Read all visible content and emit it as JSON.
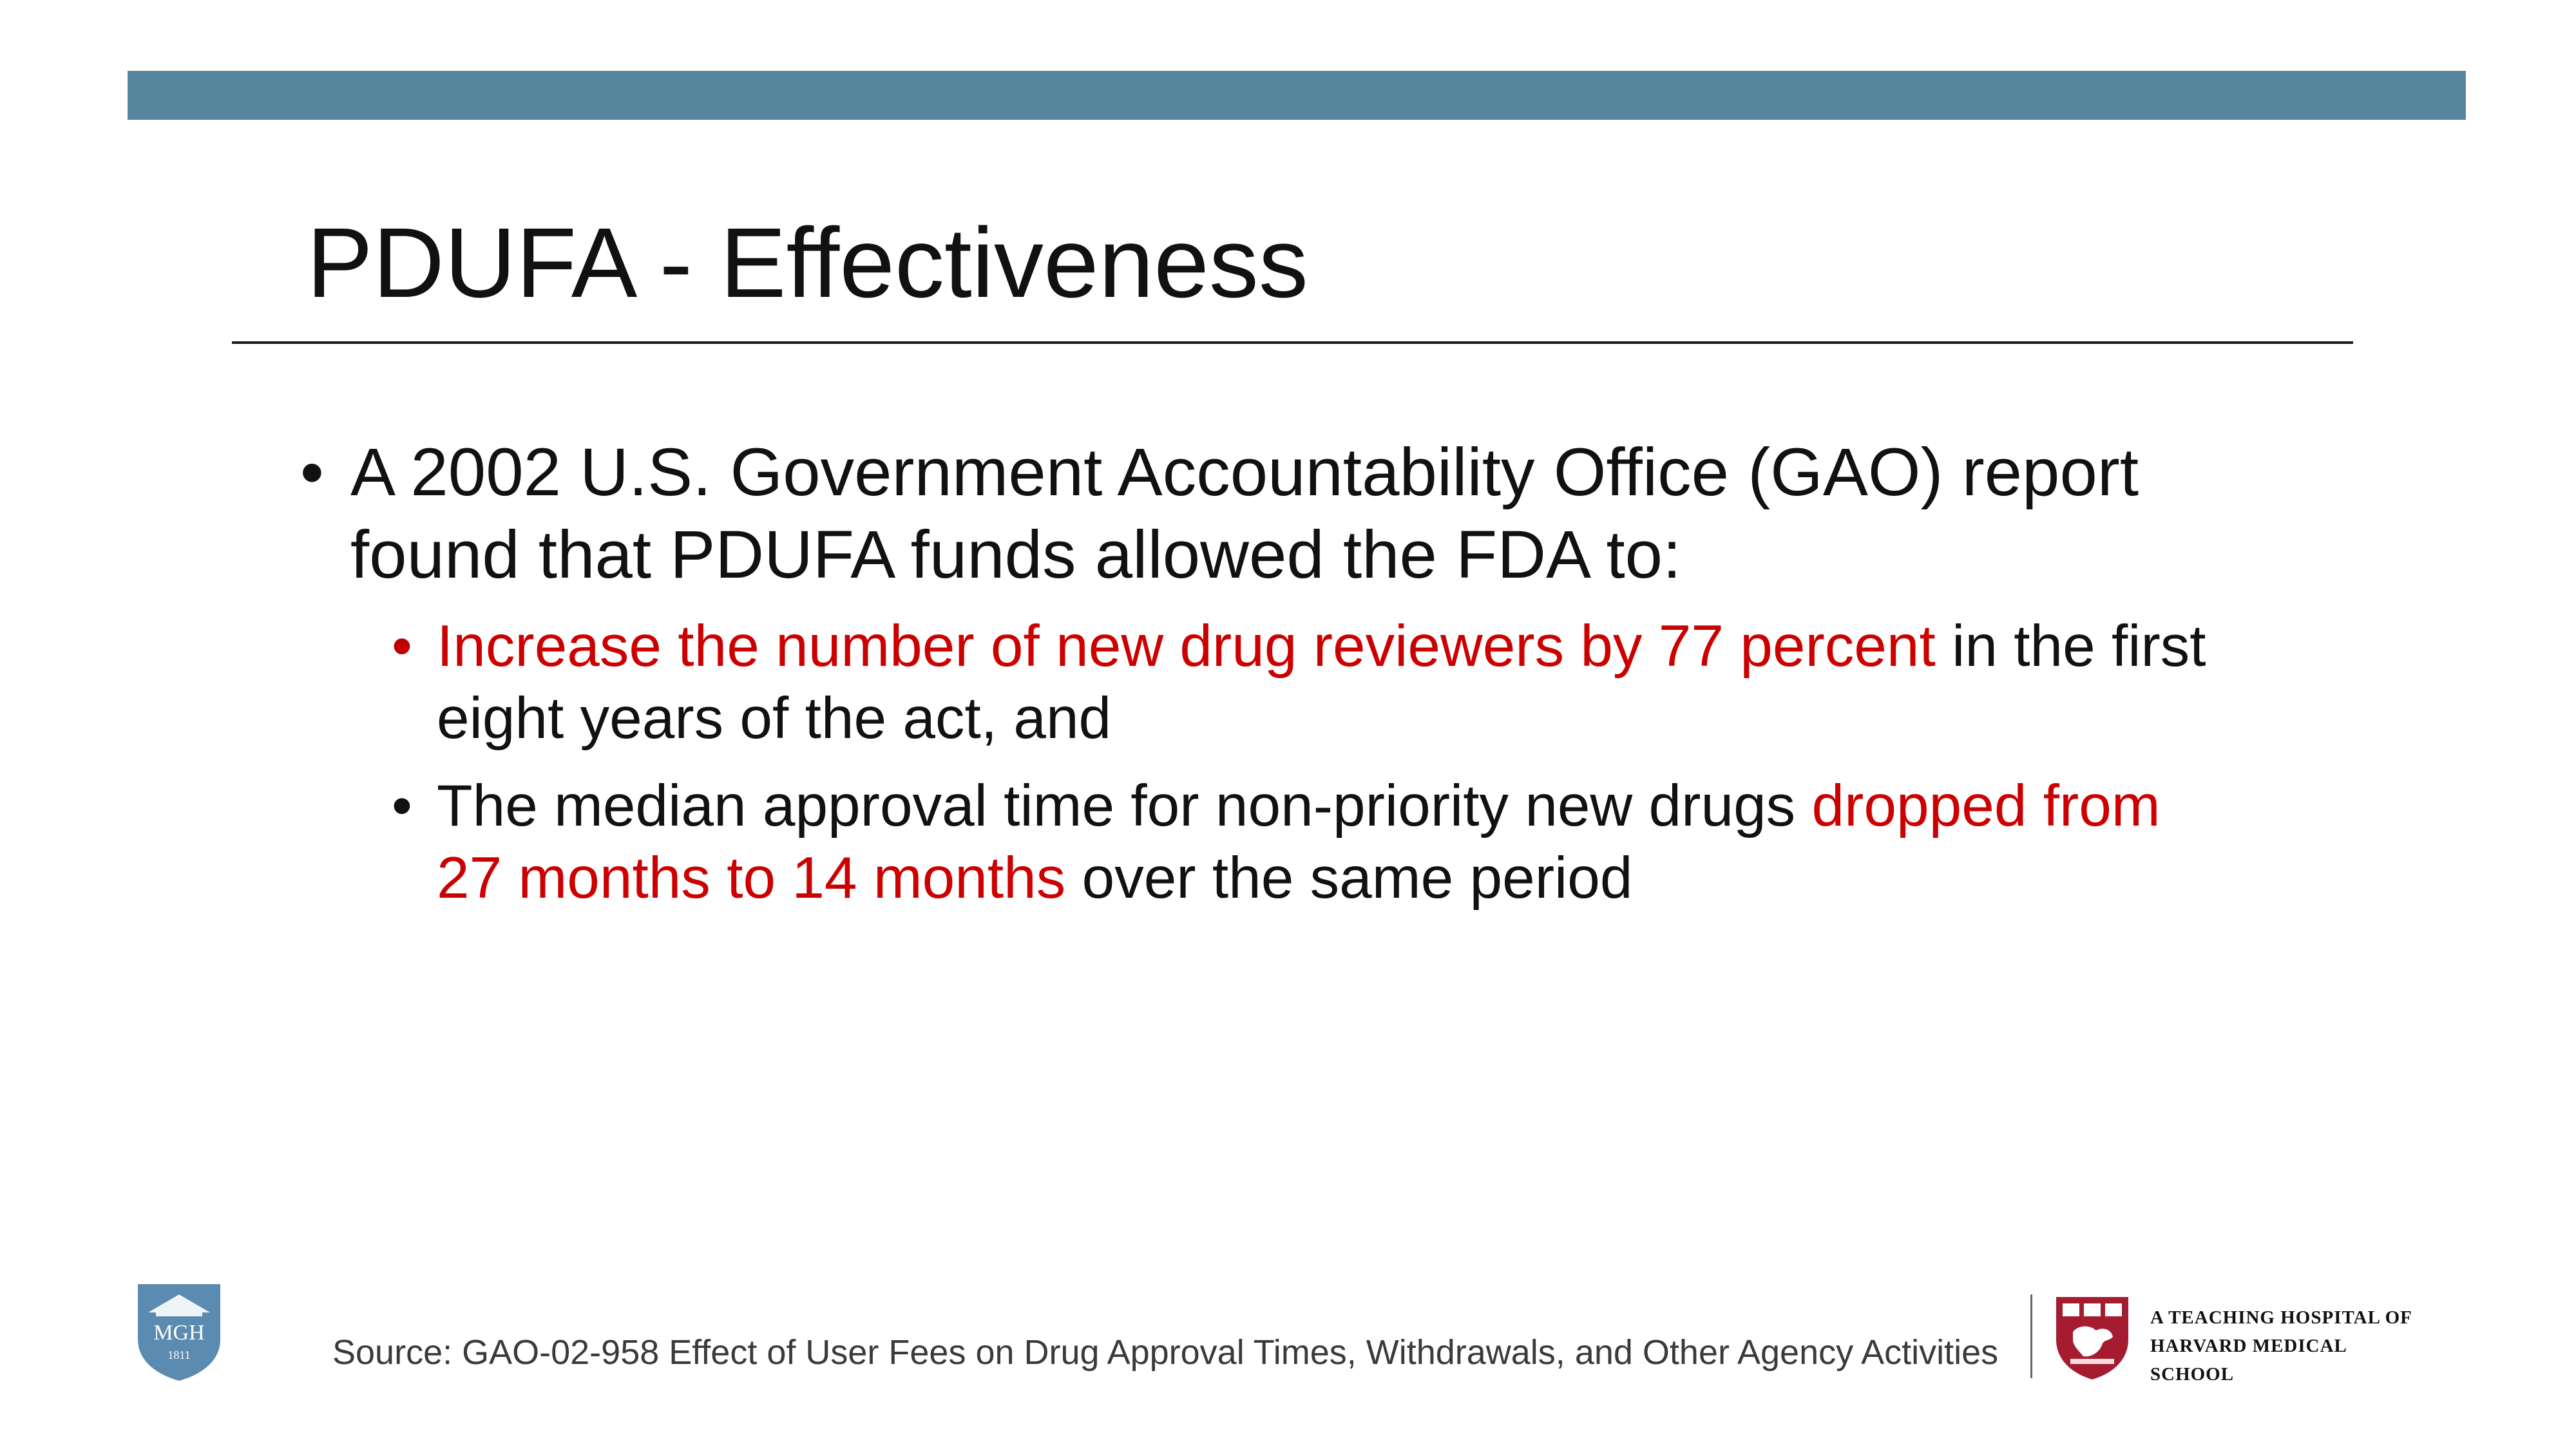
{
  "slide": {
    "title": "PDUFA - Effectiveness",
    "bullet_main": {
      "marker": "•",
      "text": "A 2002 U.S. Government Accountability Office (GAO) report found that PDUFA funds allowed the FDA to:"
    },
    "sub_bullets": [
      {
        "marker": "•",
        "highlight": "Increase the number of new drug reviewers by 77 percent",
        "rest": " in the first eight years of the act, and"
      },
      {
        "marker": "•",
        "lead": "The median approval time for non-priority new drugs ",
        "highlight": "dropped from 27 months to 14 months",
        "rest": " over the same period"
      }
    ],
    "source": "Source: GAO-02-958 Effect of User Fees on Drug Approval Times, Withdrawals, and Other Agency Activities"
  },
  "footer": {
    "mgh_logo": {
      "text": "MGH",
      "year": "1811"
    },
    "harvard_text": {
      "line1": "A TEACHING HOSPITAL OF",
      "line2": "HARVARD MEDICAL",
      "line3": "SCHOOL"
    }
  },
  "colors": {
    "accent_bar": "#56869e",
    "highlight_red": "#cc0000",
    "harvard_crimson": "#a51c30",
    "mgh_blue": "#5b8bb0"
  }
}
